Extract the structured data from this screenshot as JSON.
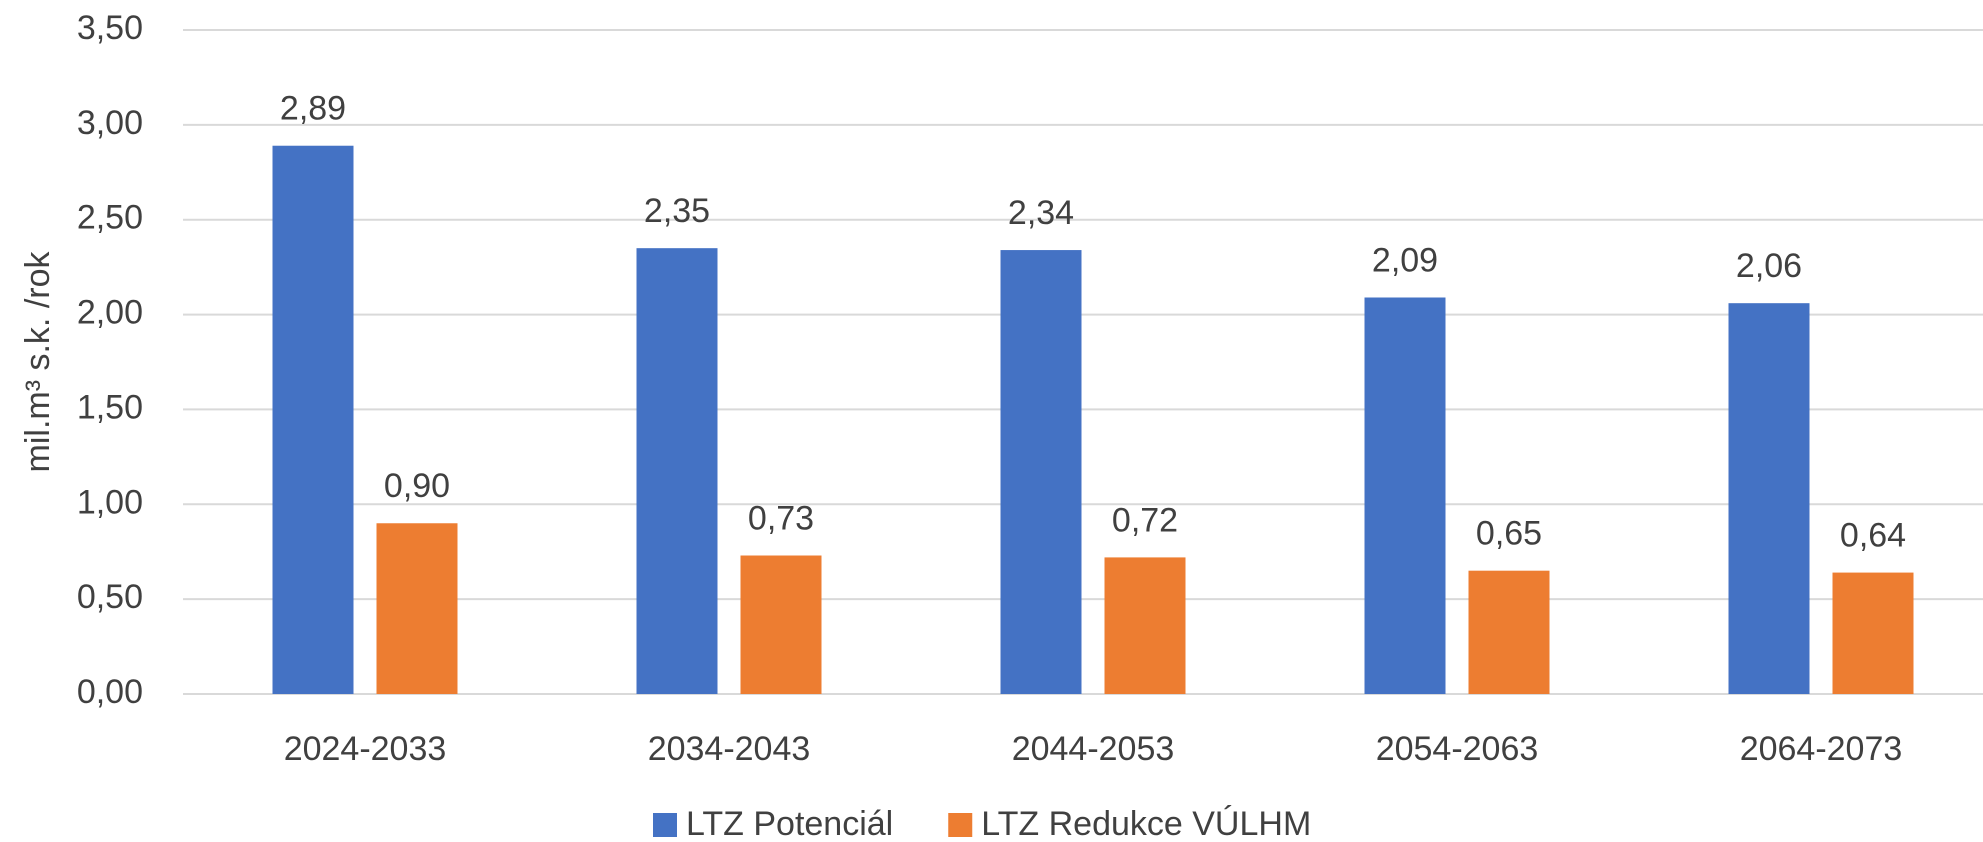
{
  "chart_data": {
    "type": "bar",
    "y_label": "mil.m³ s.k. /rok",
    "categories": [
      "2024-2033",
      "2034-2043",
      "2044-2053",
      "2054-2063",
      "2064-2073"
    ],
    "series": [
      {
        "name": "LTZ Potenciál",
        "color": "#4472c4",
        "values": [
          2.89,
          2.35,
          2.34,
          2.09,
          2.06
        ],
        "value_labels": [
          "2,89",
          "2,35",
          "2,34",
          "2,09",
          "2,06"
        ]
      },
      {
        "name": "LTZ Redukce VÚLHM",
        "color": "#ed7d31",
        "values": [
          0.9,
          0.73,
          0.72,
          0.65,
          0.64
        ],
        "value_labels": [
          "0,90",
          "0,73",
          "0,72",
          "0,65",
          "0,64"
        ]
      }
    ],
    "ylim": [
      0,
      3.5
    ],
    "yticks": [
      {
        "value": 0,
        "label": "0,00"
      },
      {
        "value": 0.5,
        "label": "0,50"
      },
      {
        "value": 1,
        "label": "1,00"
      },
      {
        "value": 1.5,
        "label": "1,50"
      },
      {
        "value": 2,
        "label": "2,00"
      },
      {
        "value": 2.5,
        "label": "2,50"
      },
      {
        "value": 3,
        "label": "3,00"
      },
      {
        "value": 3.5,
        "label": "3,50"
      }
    ],
    "grid": true,
    "legend": "bottom"
  }
}
